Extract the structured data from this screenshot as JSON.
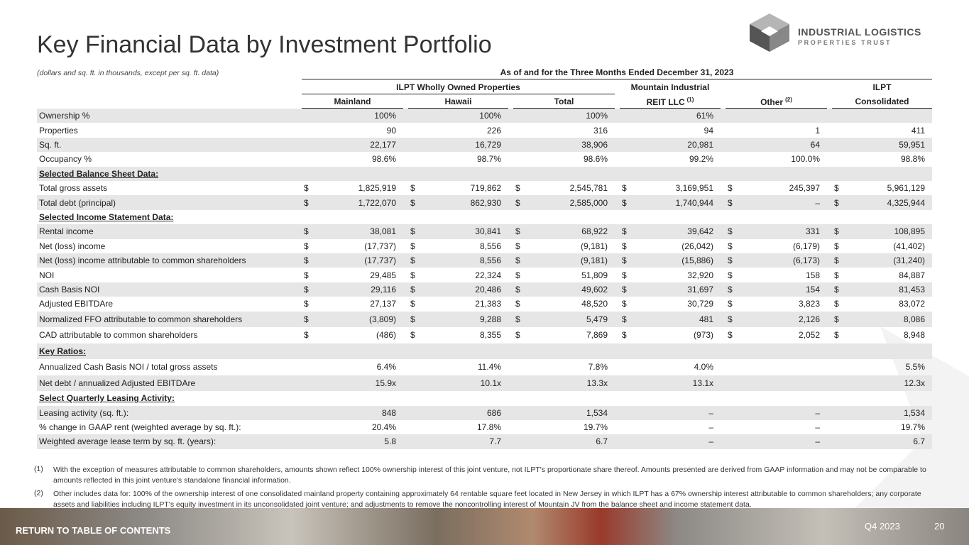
{
  "header": {
    "title": "Key Financial Data by Investment Portfolio",
    "logo_line1": "INDUSTRIAL LOGISTICS",
    "logo_line2": "PROPERTIES TRUST"
  },
  "table": {
    "note": "(dollars and sq. ft. in thousands, except per sq. ft. data)",
    "period": "As of and for the Three Months Ended December 31, 2023",
    "groups": [
      "ILPT Wholly Owned Properties",
      "Mountain Industrial",
      "ILPT"
    ],
    "columns": [
      {
        "name": "Mainland"
      },
      {
        "name": "Hawaii"
      },
      {
        "name": "Total"
      },
      {
        "name": "REIT LLC",
        "note": "(1)"
      },
      {
        "name": "Other",
        "note": "(2)"
      },
      {
        "name": "Consolidated"
      }
    ],
    "currency": "$",
    "rows": [
      {
        "label": "Ownership %",
        "values": [
          "100%",
          "100%",
          "100%",
          "61%",
          null,
          null
        ]
      },
      {
        "label": "Properties",
        "values": [
          "90",
          "226",
          "316",
          "94",
          "1",
          "411"
        ]
      },
      {
        "label": "Sq. ft.",
        "values": [
          "22,177",
          "16,729",
          "38,906",
          "20,981",
          "64",
          "59,951"
        ]
      },
      {
        "label": "Occupancy %",
        "values": [
          "98.6%",
          "98.7%",
          "98.6%",
          "99.2%",
          "100.0%",
          "98.8%"
        ]
      },
      {
        "label": "Selected Balance Sheet Data:",
        "section": true
      },
      {
        "label": "Total gross assets",
        "dollar": true,
        "values": [
          "1,825,919",
          "719,862",
          "2,545,781",
          "3,169,951",
          "245,397",
          "5,961,129"
        ]
      },
      {
        "label": "Total debt (principal)",
        "dollar": true,
        "values": [
          "1,722,070",
          "862,930",
          "2,585,000",
          "1,740,944",
          "–",
          "4,325,944"
        ]
      },
      {
        "label": "Selected Income Statement Data:",
        "section": true
      },
      {
        "label": "Rental income",
        "dollar": true,
        "values": [
          "38,081",
          "30,841",
          "68,922",
          "39,642",
          "331",
          "108,895"
        ]
      },
      {
        "label": "Net (loss) income",
        "dollar": true,
        "values": [
          "(17,737)",
          "8,556",
          "(9,181)",
          "(26,042)",
          "(6,179)",
          "(41,402)"
        ]
      },
      {
        "label": "Net (loss) income attributable to common shareholders",
        "dollar": true,
        "values": [
          "(17,737)",
          "8,556",
          "(9,181)",
          "(15,886)",
          "(6,173)",
          "(31,240)"
        ]
      },
      {
        "label": "NOI",
        "dollar": true,
        "values": [
          "29,485",
          "22,324",
          "51,809",
          "32,920",
          "158",
          "84,887"
        ]
      },
      {
        "label": "Cash Basis NOI",
        "dollar": true,
        "values": [
          "29,116",
          "20,486",
          "49,602",
          "31,697",
          "154",
          "81,453"
        ]
      },
      {
        "label": "Adjusted EBITDAre",
        "dollar": true,
        "values": [
          "27,137",
          "21,383",
          "48,520",
          "30,729",
          "3,823",
          "83,072"
        ]
      },
      {
        "label": "Normalized FFO attributable to common shareholders",
        "dollar": true,
        "values": [
          "(3,809)",
          "9,288",
          "5,479",
          "481",
          "2,126",
          "8,086"
        ]
      },
      {
        "label": "CAD attributable to common shareholders",
        "dollar": true,
        "values": [
          "(486)",
          "8,355",
          "7,869",
          "(973)",
          "2,052",
          "8,948"
        ]
      },
      {
        "label": "Key Ratios:",
        "section": true
      },
      {
        "label": "Annualized Cash Basis NOI / total gross assets",
        "values": [
          "6.4%",
          "11.4%",
          "7.8%",
          "4.0%",
          null,
          "5.5%"
        ]
      },
      {
        "label": "Net debt / annualized Adjusted EBITDAre",
        "values": [
          "15.9x",
          "10.1x",
          "13.3x",
          "13.1x",
          null,
          "12.3x"
        ]
      },
      {
        "label": "Select Quarterly Leasing Activity:",
        "section": true
      },
      {
        "label": "Leasing activity (sq. ft.):",
        "values": [
          "848",
          "686",
          "1,534",
          "–",
          "–",
          "1,534"
        ]
      },
      {
        "label": "% change in GAAP rent (weighted average by sq. ft.):",
        "values": [
          "20.4%",
          "17.8%",
          "19.7%",
          "–",
          "–",
          "19.7%"
        ]
      },
      {
        "label": "Weighted average lease term by sq. ft. (years):",
        "values": [
          "5.8",
          "7.7",
          "6.7",
          "–",
          "–",
          "6.7"
        ]
      }
    ]
  },
  "footnotes": [
    {
      "marker": "(1)",
      "text": "With the exception of measures attributable to common shareholders, amounts shown reflect 100% ownership interest of this joint venture, not ILPT's proportionate share thereof. Amounts presented are derived from GAAP information and may not be comparable to amounts reflected in this joint venture's standalone financial information."
    },
    {
      "marker": "(2)",
      "text": "Other includes data for: 100% of the ownership interest of one consolidated mainland property containing approximately 64 rentable square feet located in New Jersey in which ILPT has a 67% ownership interest attributable to common shareholders; any corporate assets and liabilities including ILPT's equity investment in its unconsolidated joint venture; and adjustments to remove the noncontrolling interest of Mountain JV from the balance sheet and income statement data."
    }
  ],
  "footer": {
    "link": "RETURN TO TABLE OF CONTENTS",
    "period": "Q4 2023",
    "page": "20"
  }
}
